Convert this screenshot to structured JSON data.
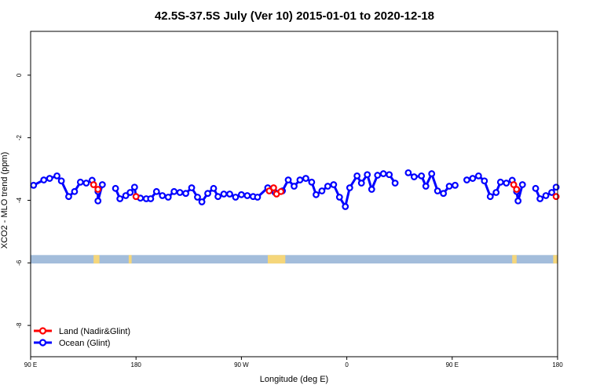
{
  "chart_data": {
    "type": "line",
    "title": "42.5S-37.5S July (Ver 10)   2015-01-01 to 2020-12-18",
    "xlabel": "Longitude (deg E)",
    "ylabel": "XCO2 - MLO trend (ppm)",
    "xlim": [
      90,
      450
    ],
    "ylim": [
      -9,
      1.4
    ],
    "x_ticks": [
      {
        "value": 90,
        "label": "90 E"
      },
      {
        "value": 162,
        "label": "180"
      },
      {
        "value": 234,
        "label": "90 W"
      },
      {
        "value": 306,
        "label": "0"
      },
      {
        "value": 378,
        "label": "90 E"
      },
      {
        "value": 450,
        "label": "180"
      }
    ],
    "y_ticks": [
      0,
      -2,
      -4,
      -6,
      -8
    ],
    "legend": {
      "position": "bottom-left",
      "entries": [
        {
          "label": "Land (Nadir&Glint)",
          "color": "#ff0000"
        },
        {
          "label": "Ocean (Glint)",
          "color": "#0000ff"
        }
      ]
    },
    "series": [
      {
        "name": "Ocean (Glint)",
        "color": "#0000ff",
        "segments": [
          [
            [
              92,
              -3.52
            ],
            [
              99,
              -3.35
            ],
            [
              103,
              -3.3
            ],
            [
              108,
              -3.22
            ],
            [
              111,
              -3.38
            ],
            [
              116,
              -3.88
            ],
            [
              120,
              -3.72
            ],
            [
              124,
              -3.42
            ],
            [
              128,
              -3.45
            ],
            [
              132,
              -3.36
            ],
            [
              136,
              -3.72
            ],
            [
              136,
              -4.02
            ],
            [
              139,
              -3.5
            ]
          ],
          [
            [
              148,
              -3.62
            ],
            [
              151,
              -3.95
            ],
            [
              155,
              -3.85
            ],
            [
              158,
              -3.75
            ],
            [
              161,
              -3.58
            ],
            [
              162,
              -3.88
            ],
            [
              165,
              -3.93
            ],
            [
              169,
              -3.95
            ],
            [
              172,
              -3.95
            ],
            [
              176,
              -3.72
            ],
            [
              180,
              -3.85
            ],
            [
              184,
              -3.9
            ],
            [
              188,
              -3.72
            ],
            [
              192,
              -3.75
            ],
            [
              196,
              -3.78
            ],
            [
              200,
              -3.6
            ],
            [
              204,
              -3.9
            ],
            [
              207,
              -4.05
            ],
            [
              211,
              -3.78
            ],
            [
              215,
              -3.62
            ],
            [
              218,
              -3.88
            ],
            [
              222,
              -3.8
            ],
            [
              226,
              -3.8
            ],
            [
              230,
              -3.9
            ],
            [
              234,
              -3.82
            ],
            [
              238,
              -3.85
            ],
            [
              242,
              -3.88
            ],
            [
              245,
              -3.9
            ],
            [
              252,
              -3.6
            ],
            [
              257,
              -3.75
            ],
            [
              262,
              -3.7
            ],
            [
              266,
              -3.35
            ],
            [
              270,
              -3.55
            ],
            [
              274,
              -3.35
            ],
            [
              278,
              -3.3
            ],
            [
              282,
              -3.42
            ],
            [
              285,
              -3.82
            ],
            [
              289,
              -3.7
            ],
            [
              293,
              -3.55
            ],
            [
              297,
              -3.5
            ],
            [
              301,
              -3.9
            ],
            [
              305,
              -4.2
            ],
            [
              308,
              -3.6
            ],
            [
              313,
              -3.22
            ],
            [
              316,
              -3.45
            ],
            [
              320,
              -3.18
            ],
            [
              323,
              -3.65
            ],
            [
              327,
              -3.2
            ],
            [
              331,
              -3.15
            ],
            [
              335,
              -3.18
            ],
            [
              339,
              -3.45
            ]
          ],
          [
            [
              348,
              -3.12
            ],
            [
              352,
              -3.25
            ],
            [
              357,
              -3.22
            ],
            [
              360,
              -3.55
            ],
            [
              364,
              -3.15
            ],
            [
              368,
              -3.7
            ],
            [
              372,
              -3.78
            ],
            [
              376,
              -3.55
            ],
            [
              380,
              -3.52
            ]
          ],
          [
            [
              388,
              -3.35
            ],
            [
              392,
              -3.3
            ],
            [
              396,
              -3.22
            ],
            [
              400,
              -3.38
            ],
            [
              404,
              -3.88
            ],
            [
              408,
              -3.75
            ],
            [
              411,
              -3.42
            ],
            [
              415,
              -3.45
            ],
            [
              419,
              -3.36
            ],
            [
              422,
              -3.72
            ],
            [
              423,
              -4.02
            ],
            [
              426,
              -3.5
            ]
          ],
          [
            [
              435,
              -3.62
            ],
            [
              438,
              -3.95
            ],
            [
              442,
              -3.85
            ],
            [
              446,
              -3.75
            ],
            [
              449,
              -3.58
            ]
          ]
        ]
      },
      {
        "name": "Land (Nadir&Glint)",
        "color": "#ff0000",
        "segments": [
          [
            [
              133,
              -3.5
            ],
            [
              136,
              -3.65
            ]
          ],
          [
            [
              162,
              -3.88
            ]
          ],
          [
            [
              253,
              -3.7
            ],
            [
              256,
              -3.6
            ],
            [
              258,
              -3.8
            ],
            [
              261,
              -3.72
            ]
          ],
          [
            [
              420,
              -3.5
            ],
            [
              422,
              -3.65
            ]
          ],
          [
            [
              449,
              -3.88
            ]
          ]
        ]
      }
    ],
    "land_ocean_strip": {
      "y_range": [
        -5.75,
        -6.02
      ],
      "ocean_color": "#a3bddb",
      "land_color": "#f5d67a",
      "land_spans": [
        [
          133,
          137
        ],
        [
          157,
          159
        ],
        [
          252,
          264
        ],
        [
          419,
          422
        ],
        [
          447,
          450
        ]
      ]
    }
  }
}
